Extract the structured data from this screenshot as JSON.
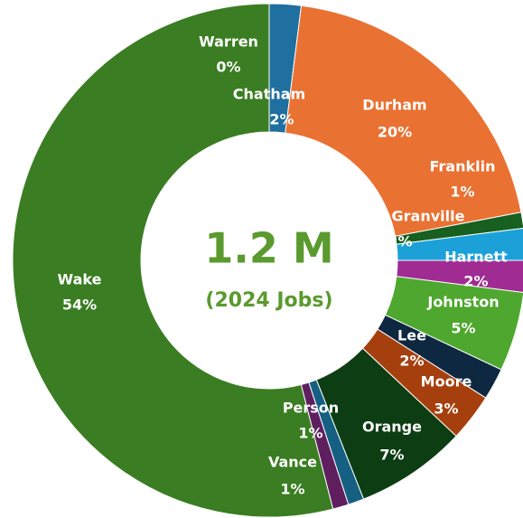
{
  "chart_data": {
    "type": "donut",
    "center_title": "1.2 M",
    "center_subtitle": "(2024 Jobs)",
    "categories": [
      "Warren",
      "Chatham",
      "Durham",
      "Franklin",
      "Granville",
      "Harnett",
      "Johnston",
      "Lee",
      "Moore",
      "Orange",
      "Person",
      "Vance",
      "Wake"
    ],
    "values": [
      0,
      2,
      20,
      1,
      2,
      2,
      5,
      2,
      3,
      7,
      1,
      1,
      54
    ],
    "value_labels": [
      "0%",
      "2%",
      "20%",
      "1%",
      "2%",
      "2%",
      "5%",
      "2%",
      "3%",
      "7%",
      "1%",
      "1%",
      "54%"
    ],
    "colors": [
      "#5b9bd5",
      "#1f6fa0",
      "#e97132",
      "#17601f",
      "#1ba1d8",
      "#a02b93",
      "#4ea72e",
      "#0e2841",
      "#a5400e",
      "#0d3d12",
      "#156082",
      "#5f1f5f",
      "#3a7d22"
    ],
    "center_color": "#5a9a2e"
  }
}
